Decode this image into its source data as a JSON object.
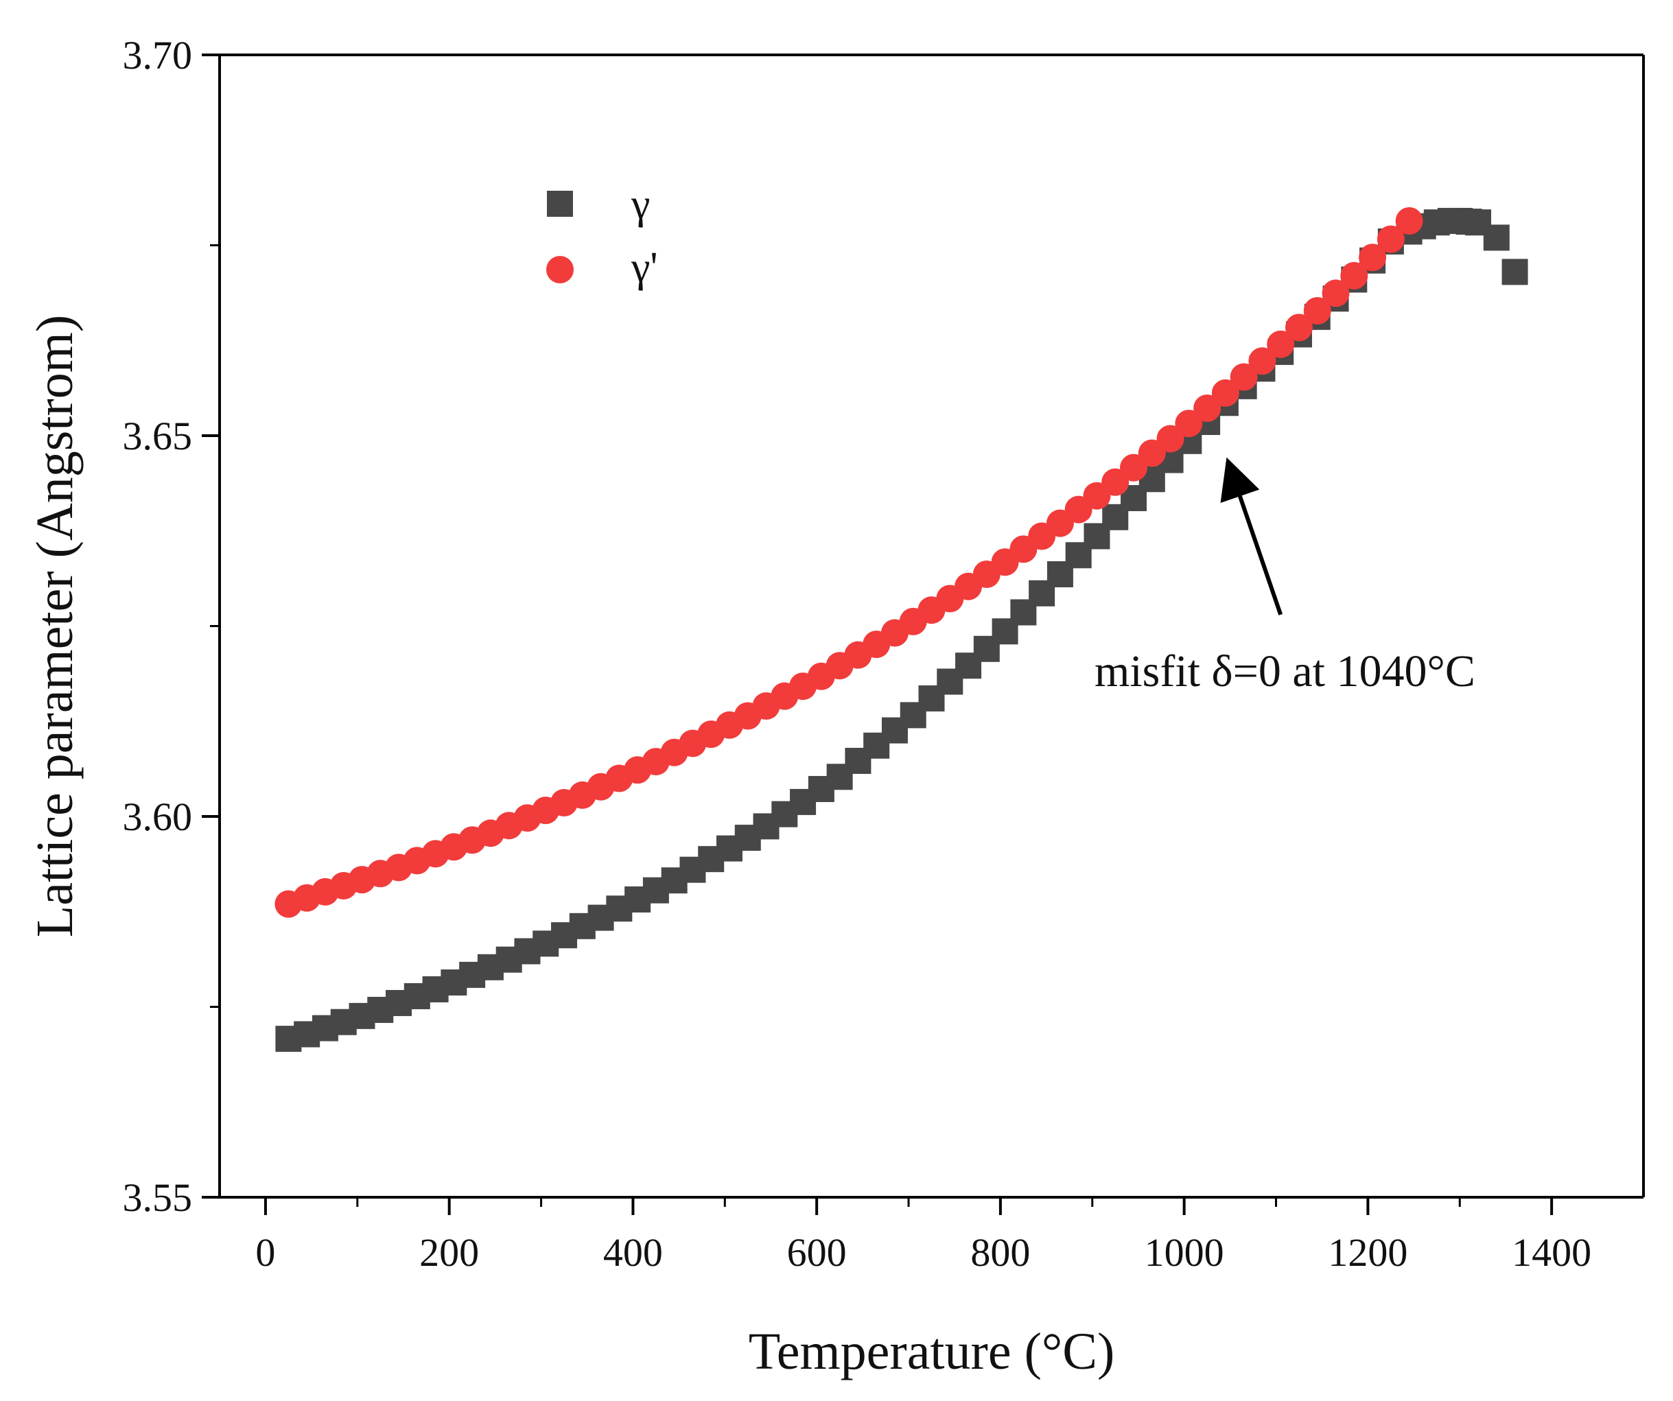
{
  "chart_data": {
    "type": "scatter",
    "title": "",
    "xlabel": "Temperature (°C)",
    "ylabel": "Lattice parameter (Angstrom)",
    "xlim": [
      -50,
      1500
    ],
    "ylim": [
      3.55,
      3.7
    ],
    "x_ticks": [
      0,
      200,
      400,
      600,
      800,
      1000,
      1200,
      1400
    ],
    "x_tick_labels": [
      "0",
      "200",
      "400",
      "600",
      "800",
      "1000",
      "1200",
      "1400"
    ],
    "x_minor_ticks": [
      100,
      300,
      500,
      700,
      900,
      1100,
      1300
    ],
    "y_ticks": [
      3.55,
      3.6,
      3.65,
      3.7
    ],
    "y_tick_labels": [
      "3.55",
      "3.60",
      "3.65",
      "3.70"
    ],
    "y_minor_ticks": [
      3.575,
      3.625,
      3.675
    ],
    "grid": false,
    "legend_position": "top-left",
    "series": [
      {
        "name": "γ",
        "marker": "square",
        "color": "#474747",
        "x": [
          25,
          45,
          65,
          85,
          105,
          125,
          145,
          165,
          185,
          205,
          225,
          245,
          265,
          285,
          305,
          325,
          345,
          365,
          385,
          405,
          425,
          445,
          465,
          485,
          505,
          525,
          545,
          565,
          585,
          605,
          625,
          645,
          665,
          685,
          705,
          725,
          745,
          765,
          785,
          805,
          825,
          845,
          865,
          885,
          905,
          925,
          945,
          965,
          985,
          1005,
          1025,
          1045,
          1065,
          1085,
          1105,
          1125,
          1145,
          1165,
          1185,
          1205,
          1225,
          1245,
          1260,
          1275,
          1290,
          1300,
          1310,
          1320,
          1340,
          1360
        ],
        "values": [
          3.5708,
          3.5714,
          3.5722,
          3.573,
          3.5738,
          3.5746,
          3.5755,
          3.5764,
          3.5773,
          3.5782,
          3.5792,
          3.5802,
          3.5812,
          3.5823,
          3.5833,
          3.5844,
          3.5856,
          3.5867,
          3.5879,
          3.5891,
          3.5903,
          3.5916,
          3.593,
          3.5944,
          3.5958,
          3.5972,
          3.5987,
          3.6003,
          3.6019,
          3.6036,
          3.6052,
          3.6073,
          3.6093,
          3.6113,
          3.6133,
          3.6155,
          3.6177,
          3.6198,
          3.622,
          3.6243,
          3.6268,
          3.6293,
          3.6318,
          3.6343,
          3.6368,
          3.6393,
          3.6418,
          3.6443,
          3.6468,
          3.6493,
          3.6518,
          3.6543,
          3.6565,
          3.6588,
          3.661,
          3.6633,
          3.6656,
          3.668,
          3.6705,
          3.673,
          3.6755,
          3.6768,
          3.6775,
          3.678,
          3.6782,
          3.6782,
          3.6781,
          3.678,
          3.676,
          3.6715
        ]
      },
      {
        "name": "γ'",
        "marker": "circle",
        "color": "#f23b3b",
        "x": [
          25,
          45,
          65,
          85,
          105,
          125,
          145,
          165,
          185,
          205,
          225,
          245,
          265,
          285,
          305,
          325,
          345,
          365,
          385,
          405,
          425,
          445,
          465,
          485,
          505,
          525,
          545,
          565,
          585,
          605,
          625,
          645,
          665,
          685,
          705,
          725,
          745,
          765,
          785,
          805,
          825,
          845,
          865,
          885,
          905,
          925,
          945,
          965,
          985,
          1005,
          1025,
          1045,
          1065,
          1085,
          1105,
          1125,
          1145,
          1165,
          1185,
          1205,
          1225,
          1245
        ],
        "values": [
          3.5885,
          3.5893,
          3.5901,
          3.5909,
          3.5917,
          3.5925,
          3.5933,
          3.5942,
          3.5951,
          3.596,
          3.5969,
          3.5978,
          3.5988,
          3.5998,
          3.6008,
          3.6018,
          3.6028,
          3.6039,
          3.605,
          3.6061,
          3.6072,
          3.6084,
          3.6096,
          3.6108,
          3.612,
          3.6132,
          3.6145,
          3.6158,
          3.6171,
          3.6184,
          3.6198,
          3.6212,
          3.6226,
          3.6241,
          3.6256,
          3.6271,
          3.6286,
          3.6302,
          3.6318,
          3.6334,
          3.6351,
          3.6368,
          3.6385,
          3.6403,
          3.6421,
          3.6439,
          3.6458,
          3.6477,
          3.6496,
          3.6516,
          3.6536,
          3.6556,
          3.6577,
          3.6598,
          3.662,
          3.6642,
          3.6664,
          3.6687,
          3.671,
          3.6734,
          3.6758,
          3.6782
        ]
      }
    ],
    "annotations": [
      {
        "text": "misfit δ=0 at 1040°C",
        "x": 1040,
        "y": 3.6455,
        "arrow_from_x": 1105,
        "arrow_from_y": 3.6265
      }
    ]
  }
}
